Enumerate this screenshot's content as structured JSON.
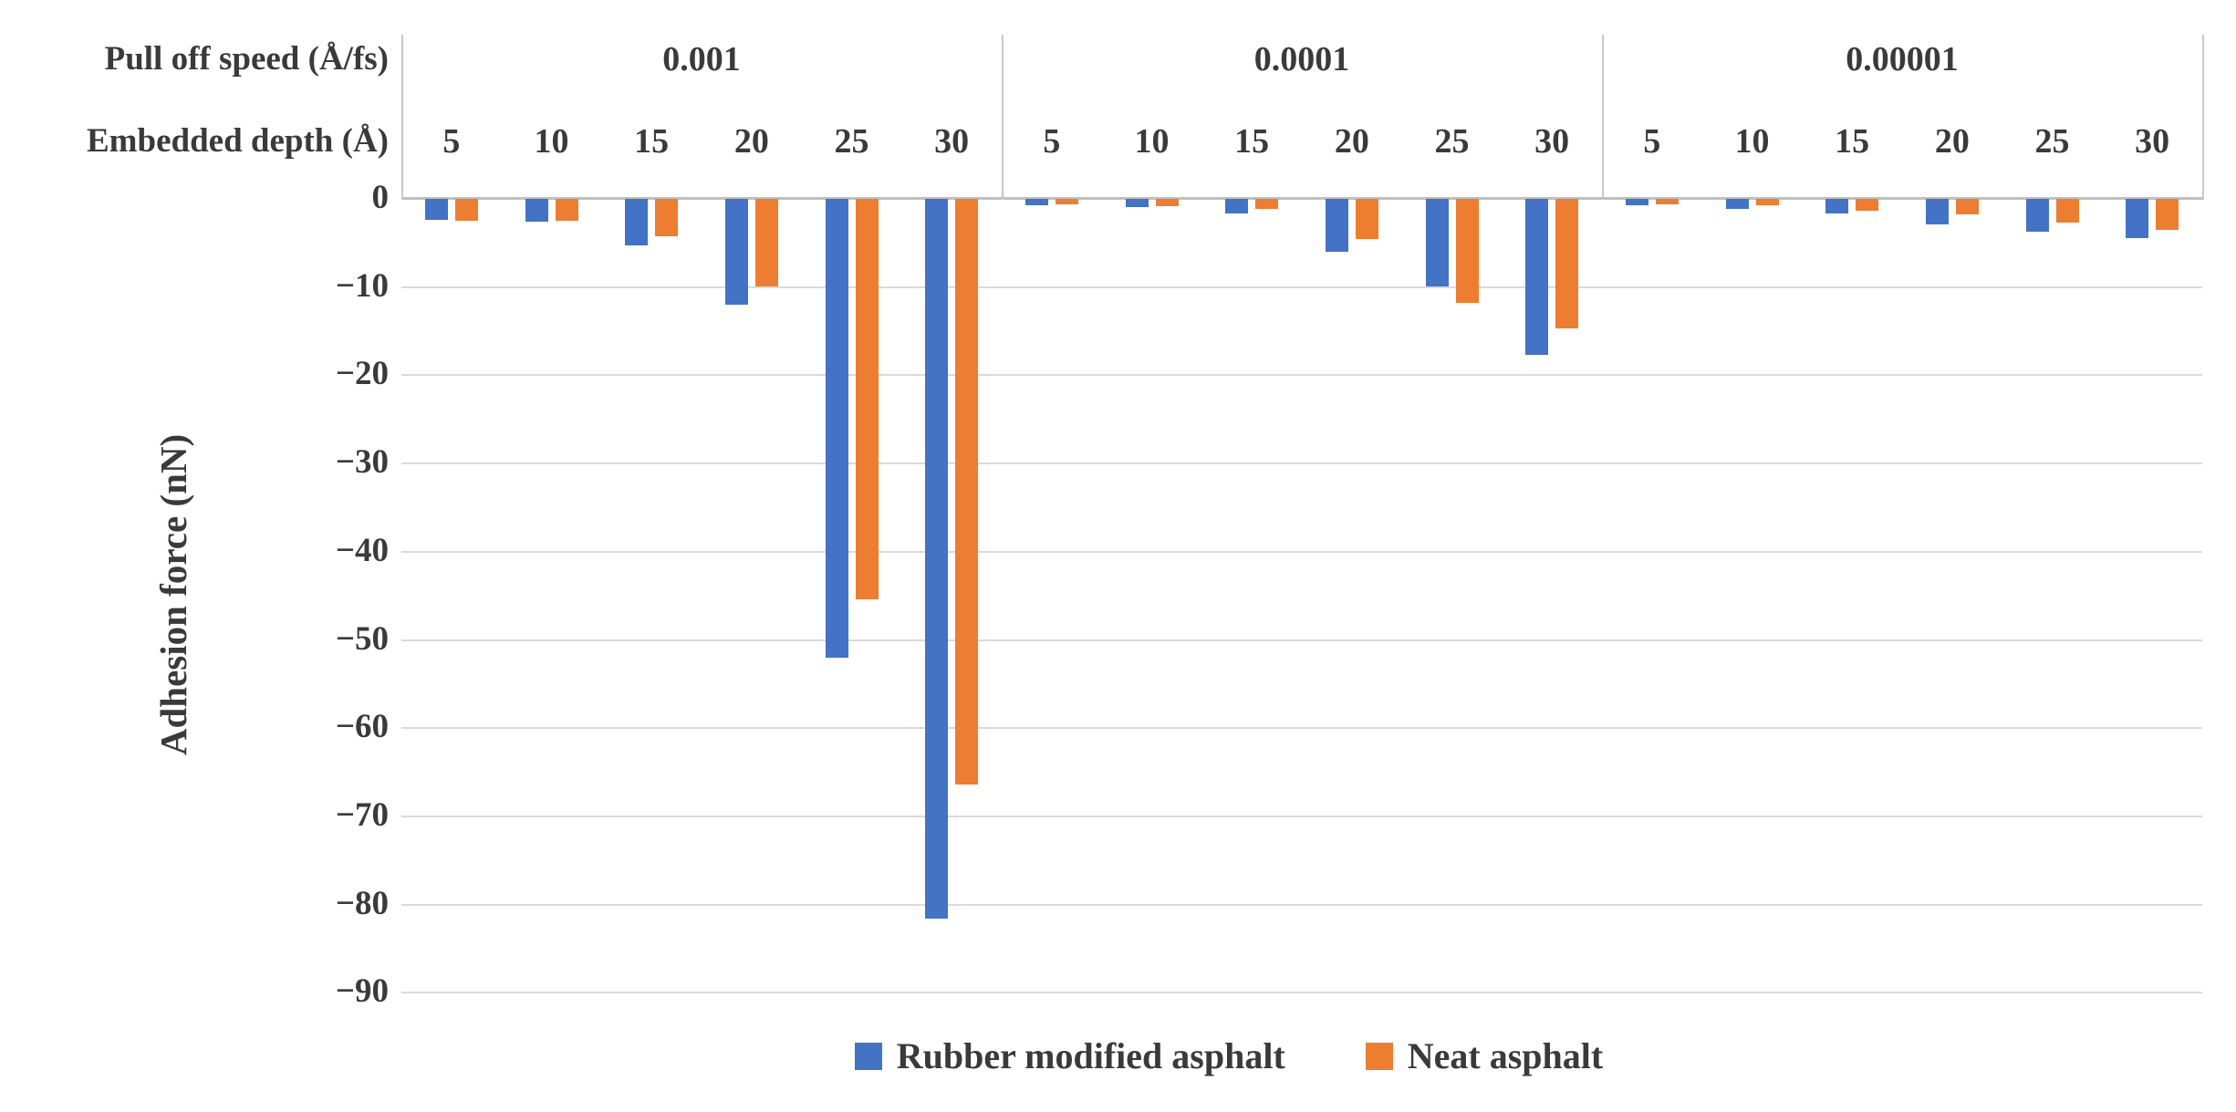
{
  "header": {
    "row1_label": "Pull off speed (Å/fs)",
    "row2_label": "Embedded depth (Å)"
  },
  "y_axis": {
    "title": "Adhesion force (nN)",
    "tick_labels": [
      "0",
      "−10",
      "−20",
      "−30",
      "−40",
      "−50",
      "−60",
      "−70",
      "−80",
      "−90"
    ]
  },
  "legend": {
    "items": [
      {
        "label": "Rubber modified asphalt",
        "color": "#4472C4"
      },
      {
        "label": "Neat asphalt",
        "color": "#ED7D31"
      }
    ]
  },
  "colors": {
    "rubber_modified_asphalt": "#4472C4",
    "neat_asphalt": "#ED7D31",
    "gridline": "#dadada",
    "axis_line": "#bfbfbf",
    "text": "#3a3a3a"
  },
  "chart_data": {
    "type": "bar",
    "title": "",
    "xlabel_row1": "Pull off speed (Å/fs)",
    "xlabel_row2": "Embedded depth (Å)",
    "ylabel": "Adhesion force (nN)",
    "ylim": [
      -90,
      0
    ],
    "ytick_step": 10,
    "grid": true,
    "legend_position": "bottom",
    "categories": [
      5,
      10,
      15,
      20,
      25,
      30
    ],
    "groups": [
      {
        "speed": "0.001",
        "series": [
          {
            "name": "Rubber modified asphalt",
            "values": [
              -2.4,
              -2.6,
              -5.3,
              -12.0,
              -52.0,
              -81.6
            ]
          },
          {
            "name": "Neat asphalt",
            "values": [
              -2.5,
              -2.5,
              -4.2,
              -9.9,
              -45.4,
              -66.4
            ]
          }
        ]
      },
      {
        "speed": "0.0001",
        "series": [
          {
            "name": "Rubber modified asphalt",
            "values": [
              -0.7,
              -0.9,
              -1.7,
              -6.0,
              -9.9,
              -17.7
            ]
          },
          {
            "name": "Neat asphalt",
            "values": [
              -0.6,
              -0.8,
              -1.1,
              -4.6,
              -11.8,
              -14.7
            ]
          }
        ]
      },
      {
        "speed": "0.00001",
        "series": [
          {
            "name": "Rubber modified asphalt",
            "values": [
              -0.7,
              -1.1,
              -1.7,
              -2.9,
              -3.7,
              -4.4
            ]
          },
          {
            "name": "Neat asphalt",
            "values": [
              -0.6,
              -0.7,
              -1.3,
              -1.8,
              -2.7,
              -3.5
            ]
          }
        ]
      }
    ]
  }
}
